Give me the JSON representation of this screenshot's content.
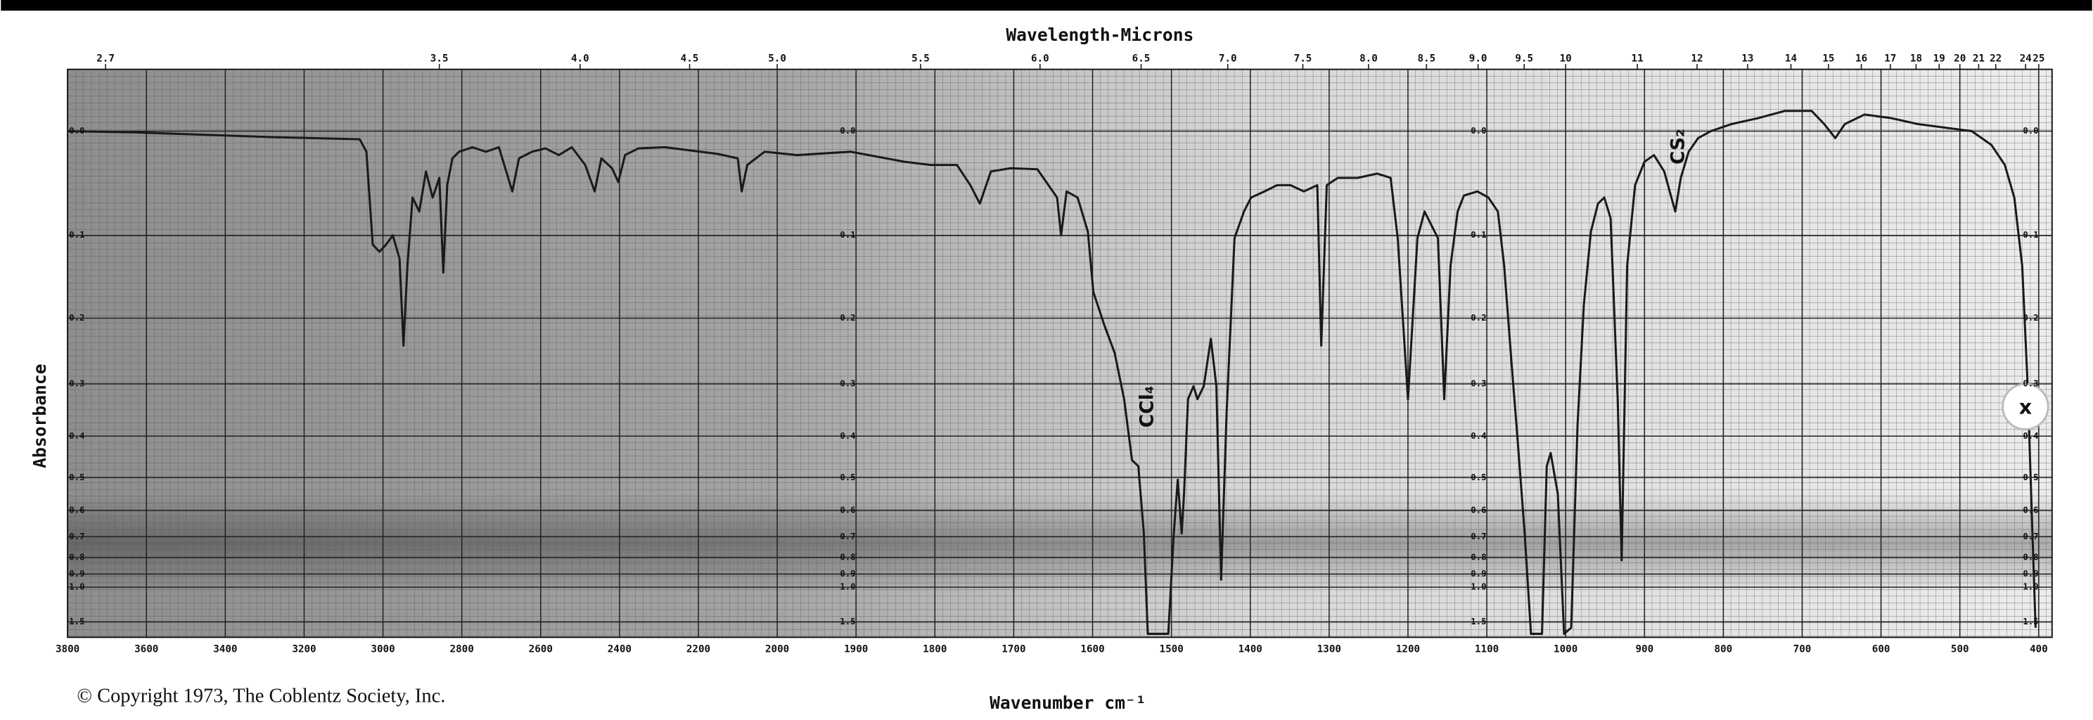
{
  "chart_data": {
    "type": "line",
    "title": "Wavelength-Microns",
    "x_label": "Wavenumber cm⁻¹",
    "y_label": "Absorbance",
    "copyright": "© Copyright 1973, The Coblentz Society, Inc.",
    "annotations": [
      "CCl₄",
      "CS₂"
    ],
    "color": "#1a1a1a",
    "grid": true,
    "yscale": "transmittance",
    "xlim": [
      3800,
      400
    ],
    "xticks": [
      3800,
      3600,
      3400,
      3200,
      3000,
      2800,
      2600,
      2400,
      2200,
      2000,
      1900,
      1800,
      1700,
      1600,
      1500,
      1400,
      1300,
      1200,
      1100,
      1000,
      900,
      800,
      700,
      600,
      500,
      400
    ],
    "x2ticks": [
      2.7,
      3.5,
      {
        "value": 4,
        "label": "4.0"
      },
      4.5,
      {
        "value": 5,
        "label": "5.0"
      },
      5.5,
      {
        "value": 6,
        "label": "6.0"
      },
      6.5,
      {
        "value": 7,
        "label": "7.0"
      },
      7.5,
      {
        "value": 8,
        "label": "8.0"
      },
      8.5,
      {
        "value": 9,
        "label": "9.0"
      },
      9.5,
      10,
      11,
      12,
      13,
      14,
      15,
      16,
      17,
      18,
      19,
      20,
      21,
      22,
      24,
      25
    ],
    "ylim": [
      -0.05,
      3
    ],
    "yticks": [
      {
        "value": 0,
        "label": "0.0"
      },
      0.1,
      0.2,
      0.3,
      0.4,
      0.5,
      0.6,
      0.7,
      0.8,
      0.9,
      {
        "value": 1,
        "label": "1.0"
      },
      1.5
    ],
    "x": [
      3800,
      3632,
      3295,
      3059,
      3042,
      3026,
      3009,
      2992,
      2975,
      2958,
      2948,
      2938,
      2925,
      2908,
      2891,
      2874,
      2857,
      2847,
      2837,
      2824,
      2807,
      2773,
      2739,
      2706,
      2672,
      2655,
      2622,
      2588,
      2554,
      2521,
      2487,
      2463,
      2446,
      2419,
      2403,
      2386,
      2352,
      2285,
      2150,
      2100,
      2090,
      2076,
      2032,
      1975,
      1907,
      1839,
      1805,
      1772,
      1755,
      1743,
      1729,
      1704,
      1670,
      1645,
      1640,
      1633,
      1619,
      1606,
      1599,
      1585,
      1572,
      1560,
      1550,
      1542,
      1535,
      1530,
      1504,
      1497,
      1492,
      1487,
      1484,
      1479,
      1472,
      1467,
      1459,
      1450,
      1443,
      1437,
      1430,
      1420,
      1408,
      1399,
      1382,
      1366,
      1349,
      1332,
      1315,
      1310,
      1303,
      1289,
      1264,
      1239,
      1222,
      1213,
      1200,
      1188,
      1179,
      1162,
      1154,
      1146,
      1137,
      1129,
      1112,
      1098,
      1086,
      1078,
      1069,
      1061,
      1052,
      1044,
      1030,
      1024,
      1019,
      1010,
      1002,
      993,
      985,
      977,
      968,
      959,
      951,
      943,
      934,
      929,
      922,
      912,
      900,
      888,
      875,
      861,
      854,
      844,
      832,
      816,
      790,
      756,
      722,
      688,
      672,
      658,
      646,
      621,
      587,
      553,
      519,
      485,
      460,
      443,
      431,
      421,
      414,
      408,
      404
    ],
    "values": [
      0,
      0.001,
      0.005,
      0.007,
      0.018,
      0.11,
      0.118,
      0.11,
      0.1,
      0.126,
      0.239,
      0.134,
      0.061,
      0.075,
      0.036,
      0.061,
      0.042,
      0.142,
      0.049,
      0.024,
      0.018,
      0.014,
      0.018,
      0.014,
      0.055,
      0.024,
      0.018,
      0.015,
      0.021,
      0.014,
      0.03,
      0.055,
      0.024,
      0.033,
      0.046,
      0.021,
      0.015,
      0.014,
      0.02,
      0.024,
      0.055,
      0.03,
      0.018,
      0.021,
      0.018,
      0.027,
      0.03,
      0.03,
      0.049,
      0.067,
      0.036,
      0.033,
      0.034,
      0.061,
      0.1,
      0.055,
      0.061,
      0.096,
      0.166,
      0.21,
      0.25,
      0.327,
      0.455,
      0.47,
      0.686,
      2.1,
      2.1,
      0.686,
      0.506,
      0.686,
      0.546,
      0.327,
      0.304,
      0.327,
      0.304,
      0.229,
      0.304,
      0.94,
      0.352,
      0.103,
      0.075,
      0.061,
      0.055,
      0.049,
      0.049,
      0.055,
      0.049,
      0.239,
      0.049,
      0.042,
      0.042,
      0.038,
      0.042,
      0.103,
      0.327,
      0.103,
      0.075,
      0.103,
      0.327,
      0.134,
      0.075,
      0.059,
      0.055,
      0.061,
      0.075,
      0.134,
      0.26,
      0.407,
      0.686,
      2.1,
      2.1,
      0.47,
      0.438,
      0.546,
      2.1,
      1.7,
      0.379,
      0.183,
      0.096,
      0.067,
      0.061,
      0.082,
      0.327,
      0.815,
      0.134,
      0.049,
      0.027,
      0.021,
      0.036,
      0.075,
      0.042,
      0.018,
      0.006,
      0,
      -0.006,
      -0.011,
      -0.017,
      -0.017,
      -0.006,
      0.006,
      -0.006,
      -0.014,
      -0.011,
      -0.006,
      -0.003,
      0,
      0.012,
      0.03,
      0.061,
      0.134,
      0.304,
      0.686,
      1.7
    ]
  },
  "ui": {
    "close_label": "x"
  }
}
